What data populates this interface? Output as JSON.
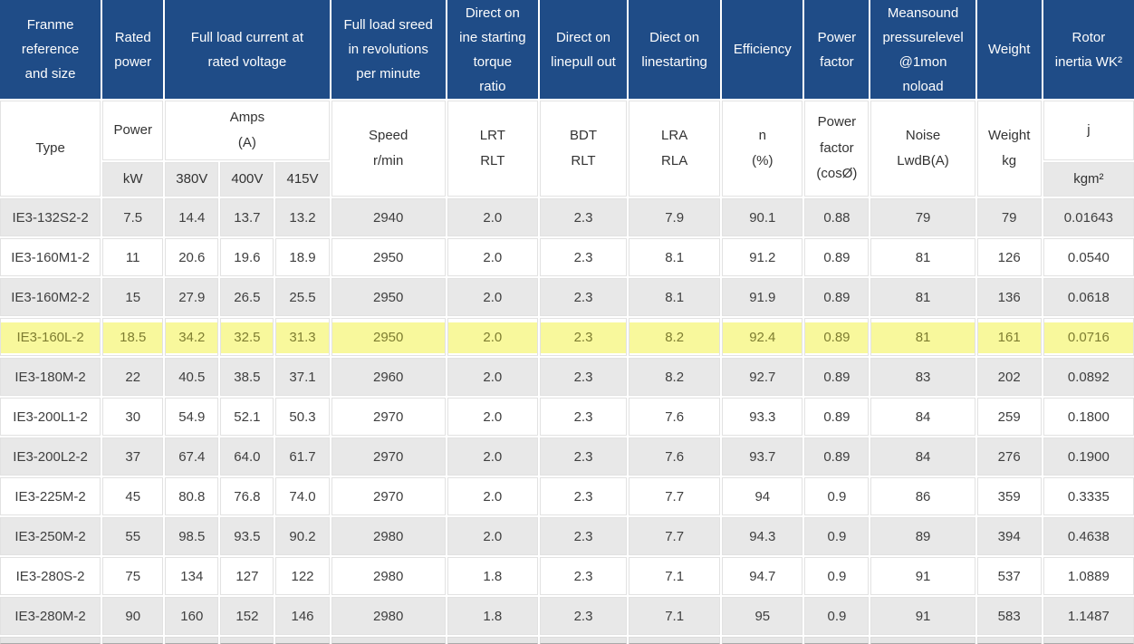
{
  "colors": {
    "header_bg": "#1f4c87",
    "header_text": "#fdfdfd",
    "row_alt_bg": "#e8e8e8",
    "highlight_bg": "#f8f89c",
    "highlight_text": "#7e7d31",
    "body_text": "#3f3f3f",
    "unit_cell_bg": "#e8e8e8"
  },
  "table": {
    "header_row1": {
      "frame": "Franme\nreference\nand size",
      "rated_power": "Rated\npower",
      "full_load_current": "Full load current at\nrated voltage",
      "full_load_speed": "Full load sreed\nin revolutions\nper minute",
      "dol_starting_torque": "Direct on\nine starting\ntorque\nratio",
      "dol_pull_out": "Direct on\nlinepull out",
      "dol_starting": "Diect on\nlinestarting",
      "efficiency": "Efficiency",
      "power_factor": "Power\nfactor",
      "sound_pressure": "Meansound\npressurelevel\n@1mon\nnoload",
      "weight": "Weight",
      "rotor_inertia": "Rotor\ninertia WK²"
    },
    "header_row2": {
      "type": "Type",
      "power": "Power",
      "amps": "Amps\n(A)",
      "speed": "Speed\nr/min",
      "lrt": "LRT\nRLT",
      "bdt": "BDT\nRLT",
      "lra": "LRA\nRLA",
      "n_pct": "n\n(%)",
      "cos": "Power\nfactor\n(cosØ)",
      "noise": "Noise\nLwdB(A)",
      "weight_kg": "Weight\nkg",
      "j": "j",
      "units": {
        "kw": "kW",
        "v380": "380V",
        "v400": "400V",
        "v415": "415V",
        "kgm2": "kgm²"
      }
    },
    "rows": [
      {
        "highlighted": false,
        "cells": [
          "IE3-132S2-2",
          "7.5",
          "14.4",
          "13.7",
          "13.2",
          "2940",
          "2.0",
          "2.3",
          "7.9",
          "90.1",
          "0.88",
          "79",
          "79",
          "0.01643"
        ]
      },
      {
        "highlighted": false,
        "cells": [
          "IE3-160M1-2",
          "11",
          "20.6",
          "19.6",
          "18.9",
          "2950",
          "2.0",
          "2.3",
          "8.1",
          "91.2",
          "0.89",
          "81",
          "126",
          "0.0540"
        ]
      },
      {
        "highlighted": false,
        "cells": [
          "IE3-160M2-2",
          "15",
          "27.9",
          "26.5",
          "25.5",
          "2950",
          "2.0",
          "2.3",
          "8.1",
          "91.9",
          "0.89",
          "81",
          "136",
          "0.0618"
        ]
      },
      {
        "highlighted": true,
        "cells": [
          "IE3-160L-2",
          "18.5",
          "34.2",
          "32.5",
          "31.3",
          "2950",
          "2.0",
          "2.3",
          "8.2",
          "92.4",
          "0.89",
          "81",
          "161",
          "0.0716"
        ]
      },
      {
        "highlighted": false,
        "cells": [
          "IE3-180M-2",
          "22",
          "40.5",
          "38.5",
          "37.1",
          "2960",
          "2.0",
          "2.3",
          "8.2",
          "92.7",
          "0.89",
          "83",
          "202",
          "0.0892"
        ]
      },
      {
        "highlighted": false,
        "cells": [
          "IE3-200L1-2",
          "30",
          "54.9",
          "52.1",
          "50.3",
          "2970",
          "2.0",
          "2.3",
          "7.6",
          "93.3",
          "0.89",
          "84",
          "259",
          "0.1800"
        ]
      },
      {
        "highlighted": false,
        "cells": [
          "IE3-200L2-2",
          "37",
          "67.4",
          "64.0",
          "61.7",
          "2970",
          "2.0",
          "2.3",
          "7.6",
          "93.7",
          "0.89",
          "84",
          "276",
          "0.1900"
        ]
      },
      {
        "highlighted": false,
        "cells": [
          "IE3-225M-2",
          "45",
          "80.8",
          "76.8",
          "74.0",
          "2970",
          "2.0",
          "2.3",
          "7.7",
          "94",
          "0.9",
          "86",
          "359",
          "0.3335"
        ]
      },
      {
        "highlighted": false,
        "cells": [
          "IE3-250M-2",
          "55",
          "98.5",
          "93.5",
          "90.2",
          "2980",
          "2.0",
          "2.3",
          "7.7",
          "94.3",
          "0.9",
          "89",
          "394",
          "0.4638"
        ]
      },
      {
        "highlighted": false,
        "cells": [
          "IE3-280S-2",
          "75",
          "134",
          "127",
          "122",
          "2980",
          "1.8",
          "2.3",
          "7.1",
          "94.7",
          "0.9",
          "91",
          "537",
          "1.0889"
        ]
      },
      {
        "highlighted": false,
        "cells": [
          "IE3-280M-2",
          "90",
          "160",
          "152",
          "146",
          "2980",
          "1.8",
          "2.3",
          "7.1",
          "95",
          "0.9",
          "91",
          "583",
          "1.1487"
        ]
      }
    ]
  }
}
